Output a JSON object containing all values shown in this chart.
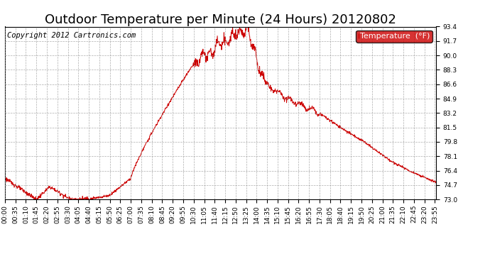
{
  "title": "Outdoor Temperature per Minute (24 Hours) 20120802",
  "copyright_text": "Copyright 2012 Cartronics.com",
  "legend_label": "Temperature  (°F)",
  "legend_bg": "#cc0000",
  "legend_text_color": "#ffffff",
  "line_color": "#cc0000",
  "background_color": "#ffffff",
  "grid_color": "#999999",
  "ylim": [
    73.0,
    93.4
  ],
  "yticks": [
    73.0,
    74.7,
    76.4,
    78.1,
    79.8,
    81.5,
    83.2,
    84.9,
    86.6,
    88.3,
    90.0,
    91.7,
    93.4
  ],
  "xtick_labels": [
    "00:00",
    "00:35",
    "01:10",
    "01:45",
    "02:20",
    "02:55",
    "03:30",
    "04:05",
    "04:40",
    "05:15",
    "05:50",
    "06:25",
    "07:00",
    "07:35",
    "08:10",
    "08:45",
    "09:20",
    "09:55",
    "10:30",
    "11:05",
    "11:40",
    "12:15",
    "12:50",
    "13:25",
    "14:00",
    "14:35",
    "15:10",
    "15:45",
    "16:20",
    "16:55",
    "17:30",
    "18:05",
    "18:40",
    "19:15",
    "19:50",
    "20:25",
    "21:00",
    "21:35",
    "22:10",
    "22:45",
    "23:20",
    "23:55"
  ],
  "title_fontsize": 13,
  "axis_fontsize": 6.5,
  "copyright_fontsize": 7.5,
  "legend_fontsize": 8
}
